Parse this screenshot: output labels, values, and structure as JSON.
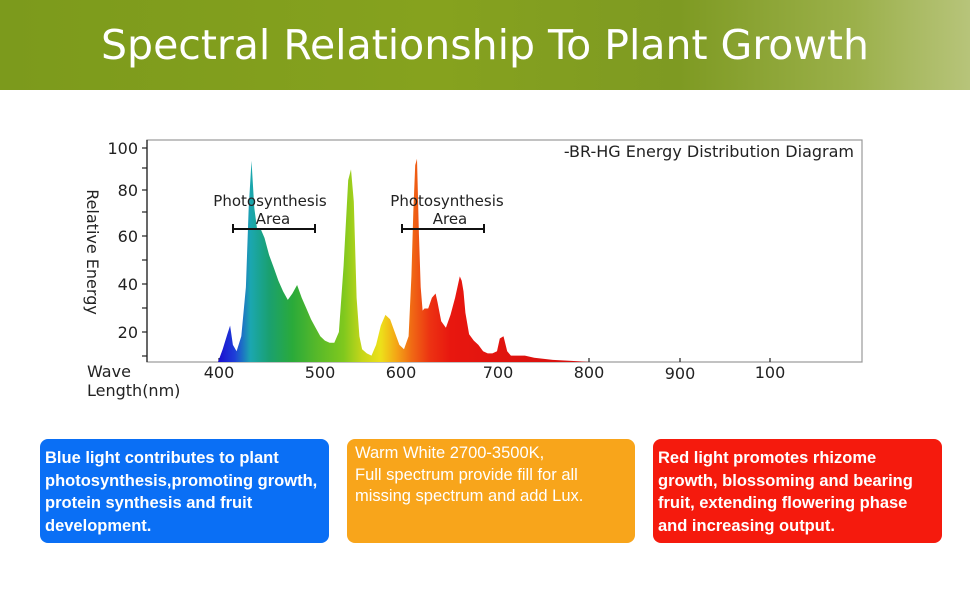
{
  "header": {
    "title": "Spectral Relationship To Plant Growth",
    "color": "#82a01f"
  },
  "chart_data": {
    "type": "area",
    "title": "-BR-HG Energy Distribution Diagram",
    "ylabel": "Relative Energy",
    "xlabel": "Wave Length(nm)",
    "x_ticks": [
      "400",
      "500",
      "600",
      "700",
      "800",
      "900",
      "100"
    ],
    "y_ticks": [
      "20",
      "40",
      "60",
      "80",
      "100"
    ],
    "ylim": [
      0,
      100
    ],
    "xlim": [
      380,
      880
    ],
    "grid": false,
    "annotations": [
      {
        "text": "Photosynthesis Area",
        "range_nm": [
          415,
          500
        ]
      },
      {
        "text": "Photosynthesis Area",
        "range_nm": [
          602,
          685
        ]
      }
    ],
    "series": [
      {
        "x": [
          400,
          405,
          410,
          413,
          416,
          420,
          425,
          430,
          433,
          436,
          439,
          442,
          446,
          450,
          455,
          460,
          465,
          470,
          475,
          480,
          485,
          490,
          495,
          500,
          505,
          510,
          515,
          520,
          525,
          530,
          535,
          540,
          543,
          546,
          549,
          552,
          555,
          560,
          565,
          570,
          575,
          580,
          585,
          590,
          595,
          600,
          605,
          608,
          610,
          612,
          614,
          616,
          618,
          620,
          622,
          626,
          630,
          634,
          636,
          640,
          645,
          650,
          655,
          660,
          662,
          664,
          666,
          670,
          675,
          680,
          685,
          690,
          695,
          700,
          703,
          707,
          711,
          715,
          720,
          730,
          740,
          760,
          780,
          800
        ],
        "values": [
          0,
          6,
          13,
          17,
          8,
          5,
          12,
          35,
          72,
          94,
          72,
          62,
          62,
          58,
          50,
          44,
          38,
          33,
          29,
          32,
          36,
          30,
          25,
          20,
          16,
          12,
          10,
          9,
          9,
          14,
          45,
          85,
          90,
          75,
          30,
          12,
          6,
          4,
          3,
          8,
          17,
          22,
          20,
          14,
          8,
          6,
          12,
          40,
          70,
          92,
          95,
          60,
          35,
          24,
          25,
          25,
          30,
          32,
          28,
          19,
          16,
          22,
          30,
          40,
          38,
          33,
          23,
          13,
          10,
          8,
          5,
          4,
          4,
          5,
          11,
          12,
          5,
          3,
          3,
          3,
          2,
          1,
          0.5,
          0
        ]
      }
    ],
    "gradient": [
      {
        "nm": 400,
        "color": "#1a0ccf"
      },
      {
        "nm": 418,
        "color": "#1e3fd8"
      },
      {
        "nm": 435,
        "color": "#1ba7b0"
      },
      {
        "nm": 455,
        "color": "#1aa070"
      },
      {
        "nm": 480,
        "color": "#2aaa3a"
      },
      {
        "nm": 505,
        "color": "#55b82a"
      },
      {
        "nm": 535,
        "color": "#7fc81e"
      },
      {
        "nm": 555,
        "color": "#c6d61a"
      },
      {
        "nm": 575,
        "color": "#ede01a"
      },
      {
        "nm": 592,
        "color": "#f4a516"
      },
      {
        "nm": 608,
        "color": "#f06a14"
      },
      {
        "nm": 628,
        "color": "#ec3212"
      },
      {
        "nm": 650,
        "color": "#e8170f"
      },
      {
        "nm": 800,
        "color": "#d40e0e"
      }
    ]
  },
  "info_boxes": {
    "blue": {
      "lines": [
        "Blue light contributes to plant",
        "photosynthesis,promoting growth,",
        "protein synthesis and fruit",
        "development."
      ],
      "color": "#0a6ff5"
    },
    "orange": {
      "lines": [
        "Warm White 2700-3500K,",
        "Full spectrum provide fill for all",
        "missing spectrum and add Lux."
      ],
      "color": "#f8a51b"
    },
    "red": {
      "lines": [
        "Red light promotes rhizome",
        "growth, blossoming and bearing",
        "fruit, extending flowering phase",
        "and increasing output."
      ],
      "color": "#f51a0d"
    }
  }
}
